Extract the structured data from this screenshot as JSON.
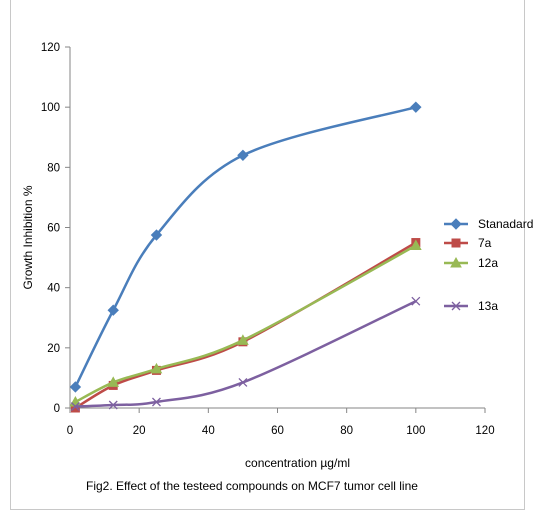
{
  "caption": "Fig2. Effect of the testeed compounds on MCF7 tumor cell line",
  "chart_data": {
    "type": "line",
    "xlabel": "concentration µg/ml",
    "ylabel": "Growth  Inhibition %",
    "xlim": [
      0,
      120
    ],
    "ylim": [
      0,
      120
    ],
    "x_ticks": [
      0,
      20,
      40,
      60,
      80,
      100,
      120
    ],
    "y_ticks": [
      0,
      20,
      40,
      60,
      80,
      100,
      120
    ],
    "grid": false,
    "legend_position": "right",
    "series": [
      {
        "name": "Stanadard",
        "color": "#4a7ebb",
        "marker": "diamond",
        "x": [
          1.56,
          12.5,
          25,
          50,
          100
        ],
        "y": [
          7,
          32.5,
          57.5,
          84,
          100
        ]
      },
      {
        "name": "7a",
        "color": "#be4b48",
        "marker": "square",
        "x": [
          1.56,
          12.5,
          25,
          50,
          100
        ],
        "y": [
          0,
          7.5,
          12.5,
          22,
          55
        ]
      },
      {
        "name": "12a",
        "color": "#98b954",
        "marker": "triangle",
        "x": [
          1.56,
          12.5,
          25,
          50,
          100
        ],
        "y": [
          2,
          8.5,
          13,
          22.5,
          54
        ]
      },
      {
        "name": "13a",
        "color": "#7d60a0",
        "marker": "x",
        "x": [
          1.56,
          12.5,
          25,
          50,
          100
        ],
        "y": [
          0.5,
          1,
          2,
          8.5,
          35.5
        ]
      }
    ]
  }
}
